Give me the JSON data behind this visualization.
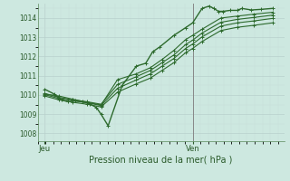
{
  "bg_color": "#cde8e0",
  "plot_bg_color": "#cde8e0",
  "grid_color": "#aacccc",
  "line_color": "#2d6a2d",
  "marker_color": "#2d6a2d",
  "ylabel_ticks": [
    1008,
    1009,
    1010,
    1011,
    1012,
    1013,
    1014
  ],
  "ylim": [
    1007.6,
    1014.75
  ],
  "xlim": [
    0.0,
    1.05
  ],
  "xlabel": "Pression niveau de la mer( hPa )",
  "xtick_labels": [
    "Jeu",
    "Ven"
  ],
  "xtick_positions": [
    0.03,
    0.66
  ],
  "vline_x": 0.66,
  "series": [
    [
      0.03,
      1010.3,
      0.07,
      1010.05,
      0.1,
      1009.75,
      0.13,
      1009.65,
      0.16,
      1009.7,
      0.19,
      1009.65,
      0.22,
      1009.55,
      0.25,
      1009.35,
      0.27,
      1009.0,
      0.3,
      1008.4,
      0.36,
      1010.5,
      0.42,
      1011.5,
      0.46,
      1011.65,
      0.49,
      1012.25,
      0.52,
      1012.5,
      0.58,
      1013.1,
      0.63,
      1013.5,
      0.66,
      1013.75,
      0.7,
      1014.5,
      0.73,
      1014.62,
      0.75,
      1014.5,
      0.77,
      1014.35,
      0.79,
      1014.35,
      0.82,
      1014.4,
      0.85,
      1014.4,
      0.87,
      1014.5,
      0.91,
      1014.42,
      0.95,
      1014.45,
      1.0,
      1014.5
    ],
    [
      0.03,
      1010.05,
      0.09,
      1009.95,
      0.15,
      1009.78,
      0.21,
      1009.62,
      0.27,
      1009.48,
      0.34,
      1010.8,
      0.42,
      1011.1,
      0.48,
      1011.42,
      0.53,
      1011.85,
      0.58,
      1012.32,
      0.63,
      1012.88,
      0.66,
      1013.1,
      0.7,
      1013.42,
      0.78,
      1014.0,
      0.85,
      1014.1,
      0.92,
      1014.2,
      1.0,
      1014.3
    ],
    [
      0.03,
      1010.08,
      0.09,
      1009.88,
      0.15,
      1009.75,
      0.21,
      1009.65,
      0.27,
      1009.52,
      0.34,
      1010.55,
      0.42,
      1010.95,
      0.48,
      1011.28,
      0.53,
      1011.68,
      0.58,
      1012.08,
      0.63,
      1012.62,
      0.66,
      1012.85,
      0.7,
      1013.22,
      0.78,
      1013.78,
      0.85,
      1013.93,
      0.92,
      1014.03,
      1.0,
      1014.15
    ],
    [
      0.03,
      1010.02,
      0.09,
      1009.82,
      0.15,
      1009.7,
      0.21,
      1009.6,
      0.27,
      1009.45,
      0.34,
      1010.35,
      0.42,
      1010.78,
      0.48,
      1011.1,
      0.53,
      1011.5,
      0.58,
      1011.9,
      0.63,
      1012.42,
      0.66,
      1012.65,
      0.7,
      1013.02,
      0.78,
      1013.58,
      0.85,
      1013.75,
      0.92,
      1013.85,
      1.0,
      1013.98
    ],
    [
      0.03,
      1009.95,
      0.09,
      1009.75,
      0.15,
      1009.62,
      0.21,
      1009.52,
      0.27,
      1009.38,
      0.34,
      1010.15,
      0.42,
      1010.58,
      0.48,
      1010.88,
      0.53,
      1011.28,
      0.58,
      1011.68,
      0.63,
      1012.2,
      0.66,
      1012.42,
      0.7,
      1012.78,
      0.78,
      1013.35,
      0.85,
      1013.52,
      0.92,
      1013.62,
      1.0,
      1013.75
    ]
  ]
}
